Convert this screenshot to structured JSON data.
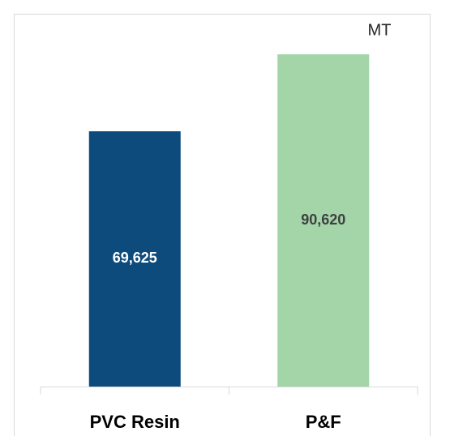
{
  "chart_data": {
    "type": "bar",
    "annotation": "MT",
    "categories": [
      "PVC Resin",
      "P&F"
    ],
    "values": [
      69625,
      90620
    ],
    "value_labels": [
      "69,625",
      "90,620"
    ],
    "colors": [
      "#0d4b7c",
      "#a3d5a9"
    ]
  }
}
